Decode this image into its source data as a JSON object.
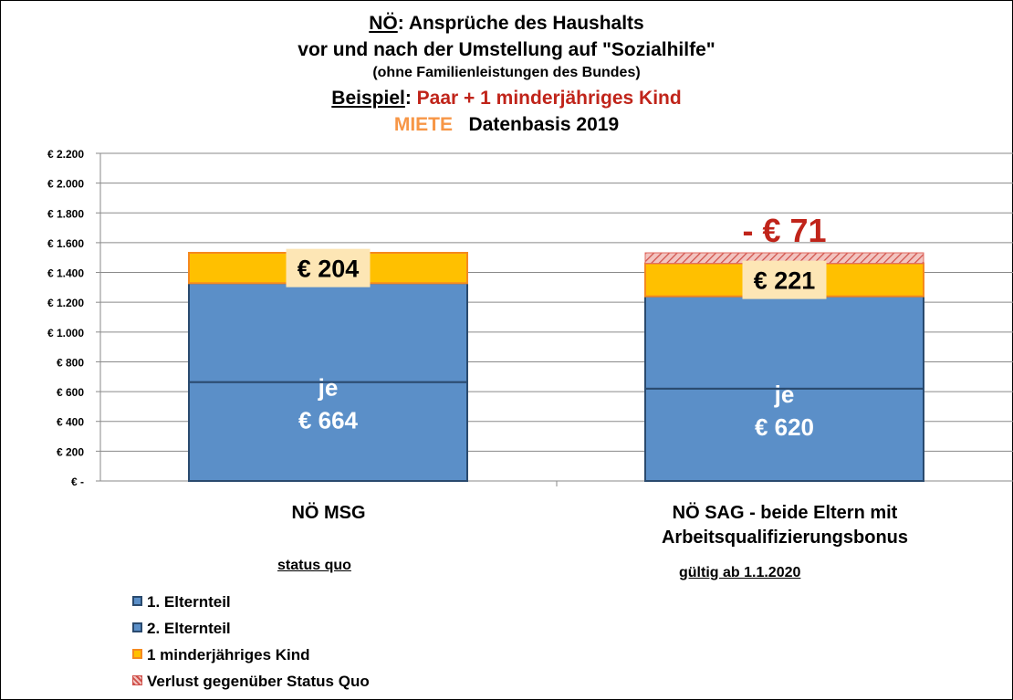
{
  "title": {
    "line1_part1": "NÖ",
    "line1_part2": ": Ansprüche des Haushalts",
    "line2": "vor und nach der Umstellung auf \"Sozialhilfe\"",
    "line3": "(ohne Familienleistungen des Bundes)",
    "line4_part1": "Beispiel",
    "line4_part2": ": ",
    "line4_part3": "Paar + 1 minderjähriges Kind",
    "line5_part1": "MIETE",
    "line5_part2": "Datenbasis 2019"
  },
  "colors": {
    "parent1": "#5b8fc8",
    "parent2": "#5b8fc8",
    "parent_border": "#2a4a6e",
    "child": "#ffc000",
    "child_border": "#f5891f",
    "loss": "#e8a7a3",
    "loss_stripe": "#d0504a",
    "loss_text": "#c0241a",
    "orange_text": "#f79646",
    "label_bg": "#fde6b5"
  },
  "chart_data": {
    "type": "bar",
    "stacked": true,
    "categories": [
      "NÖ MSG",
      "NÖ SAG - beide Eltern mit Arbeitsqualifizierungsbonus"
    ],
    "category_label_lines": [
      [
        "NÖ MSG"
      ],
      [
        "NÖ SAG - beide Eltern mit",
        "Arbeitsqualifizierungsbonus"
      ]
    ],
    "category_notes": [
      "status quo",
      "gültig  ab 1.1.2020"
    ],
    "series": [
      {
        "name": "1. Elternteil",
        "values": [
          664,
          620
        ]
      },
      {
        "name": "2. Elternteil",
        "values": [
          664,
          620
        ]
      },
      {
        "name": "1 minderjähriges Kind",
        "values": [
          204,
          221
        ]
      },
      {
        "name": "Verlust gegenüber Status Quo",
        "values": [
          0,
          71
        ]
      }
    ],
    "value_labels": {
      "parent_prefix": "je",
      "parent": [
        "€ 664",
        "€ 620"
      ],
      "child": [
        "€ 204",
        "€ 221"
      ],
      "loss": [
        "",
        "- € 71"
      ]
    },
    "ylim": [
      0,
      2200
    ],
    "ytick_values": [
      0,
      200,
      400,
      600,
      800,
      1000,
      1200,
      1400,
      1600,
      1800,
      2000,
      2200
    ],
    "ytick_labels": [
      "€ -",
      "€ 200",
      "€ 400",
      "€ 600",
      "€ 800",
      "€ 1.000",
      "€ 1.200",
      "€ 1.400",
      "€ 1.600",
      "€ 1.800",
      "€ 2.000",
      "€ 2.200"
    ],
    "grid": true,
    "legend_position": "bottom-left"
  }
}
